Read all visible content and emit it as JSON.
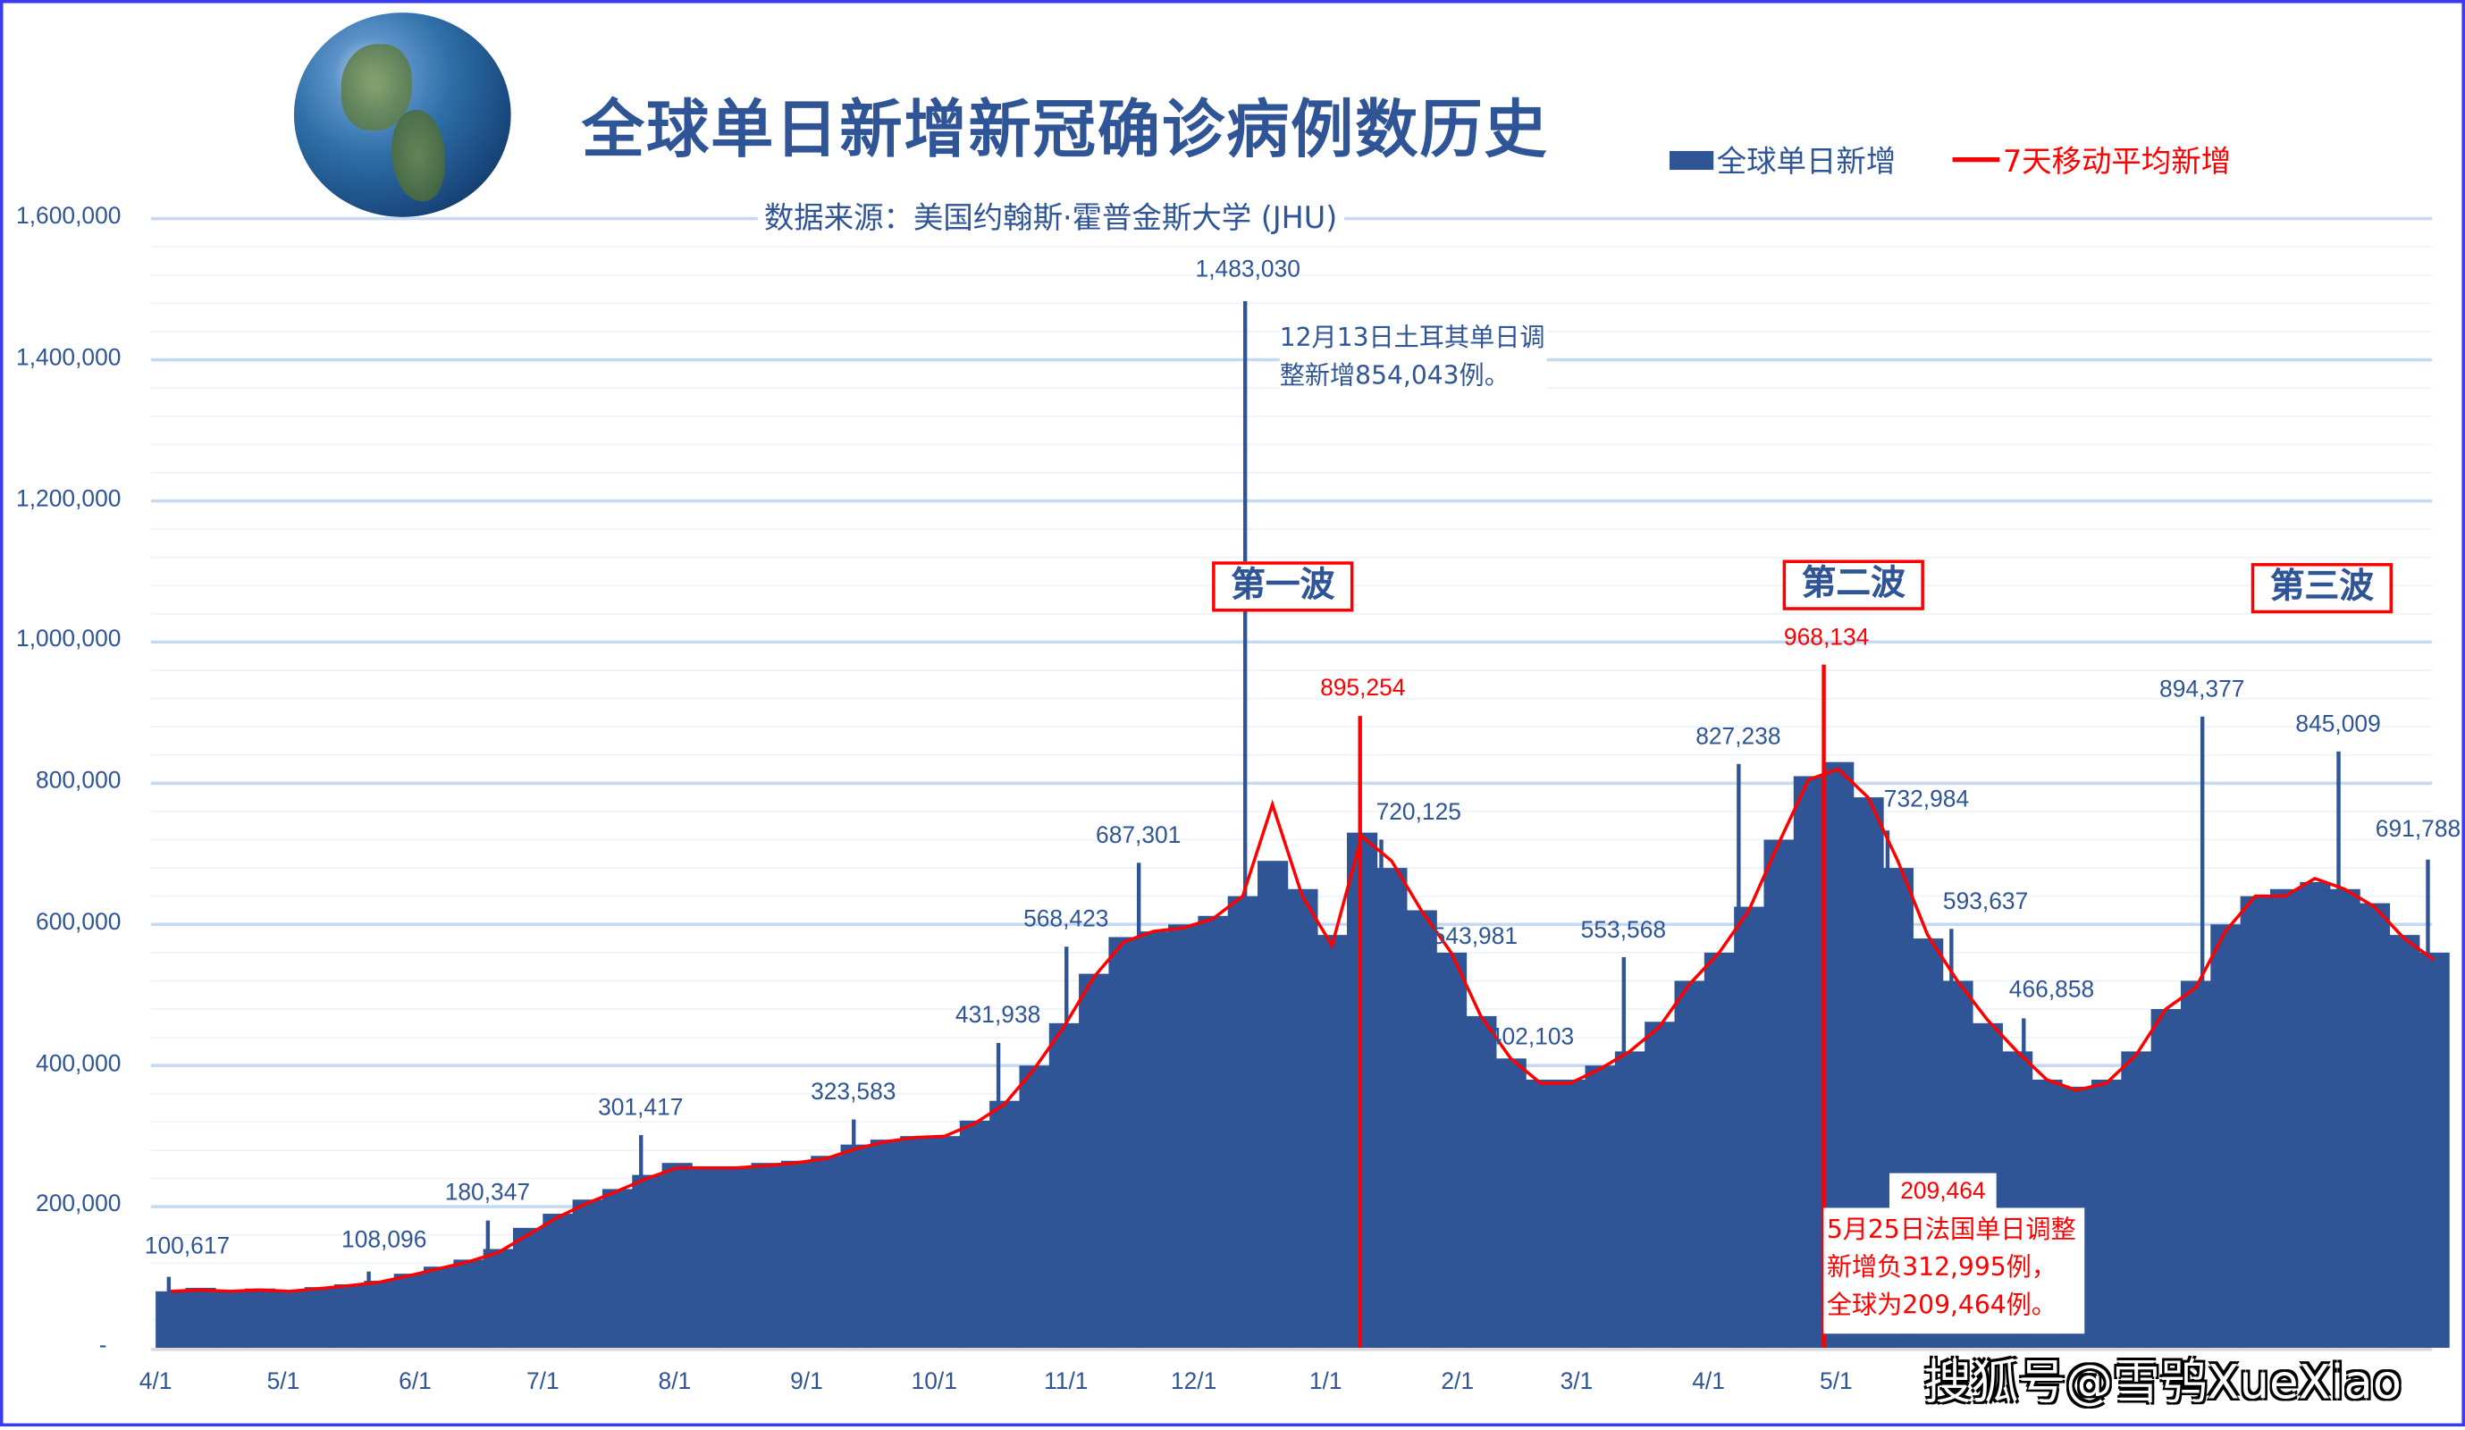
{
  "title": "全球单日新增新冠确诊病例数历史",
  "subtitle": "数据来源：美国约翰斯·霍普金斯大学 (JHU)",
  "watermark": "搜狐号@雪鸮XueXiao",
  "colors": {
    "bars": "#2f5597",
    "ma_line": "#ff0000",
    "grid": "#c5d9f1",
    "text": "#2f5597",
    "highlight": "#ff0000"
  },
  "icons": {
    "globe": "earth-globe-image"
  },
  "chart_data": {
    "type": "bar",
    "title": "全球单日新增新冠确诊病例数历史",
    "xlabel": "",
    "ylabel": "",
    "ylim": [
      0,
      1600000
    ],
    "grid": true,
    "legend_placement": "top-right",
    "yticks": [
      "-",
      "200,000",
      "400,000",
      "600,000",
      "800,000",
      "1,000,000",
      "1,200,000",
      "1,400,000",
      "1,600,000"
    ],
    "xticks": [
      "4/1",
      "5/1",
      "6/1",
      "7/1",
      "8/1",
      "9/1",
      "10/1",
      "11/1",
      "12/1",
      "1/1",
      "2/1",
      "3/1",
      "4/1",
      "5/1"
    ],
    "xtick_dates": [
      "2020-04-01",
      "2020-05-01",
      "2020-06-01",
      "2020-07-01",
      "2020-08-01",
      "2020-09-01",
      "2020-10-01",
      "2020-11-01",
      "2020-12-01",
      "2021-01-01",
      "2021-02-01",
      "2021-03-01",
      "2021-04-01",
      "2021-05-01"
    ],
    "x": [
      "2020-04-01",
      "2020-04-08",
      "2020-04-15",
      "2020-04-22",
      "2020-04-29",
      "2020-05-06",
      "2020-05-13",
      "2020-05-20",
      "2020-05-27",
      "2020-06-03",
      "2020-06-10",
      "2020-06-17",
      "2020-06-24",
      "2020-07-01",
      "2020-07-08",
      "2020-07-15",
      "2020-07-22",
      "2020-07-29",
      "2020-08-05",
      "2020-08-12",
      "2020-08-19",
      "2020-08-26",
      "2020-09-02",
      "2020-09-09",
      "2020-09-16",
      "2020-09-23",
      "2020-09-30",
      "2020-10-07",
      "2020-10-14",
      "2020-10-21",
      "2020-10-28",
      "2020-11-04",
      "2020-11-11",
      "2020-11-18",
      "2020-11-25",
      "2020-12-02",
      "2020-12-09",
      "2020-12-16",
      "2020-12-23",
      "2020-12-30",
      "2021-01-06",
      "2021-01-13",
      "2021-01-20",
      "2021-01-27",
      "2021-02-03",
      "2021-02-10",
      "2021-02-17",
      "2021-02-24",
      "2021-03-03",
      "2021-03-10",
      "2021-03-17",
      "2021-03-24",
      "2021-03-31",
      "2021-04-07",
      "2021-04-14",
      "2021-04-21",
      "2021-04-28",
      "2021-05-05",
      "2021-05-12",
      "2021-05-19",
      "2021-05-26",
      "2021-06-02",
      "2021-06-09",
      "2021-06-16",
      "2021-06-23",
      "2021-06-30",
      "2021-07-07",
      "2021-07-14",
      "2021-07-21",
      "2021-07-28",
      "2021-08-04",
      "2021-08-11",
      "2021-08-18",
      "2021-08-25",
      "2021-09-01",
      "2021-09-08",
      "2021-09-15"
    ],
    "series": [
      {
        "name": "全球单日新增",
        "type": "bar",
        "values": [
          80000,
          85000,
          82000,
          84000,
          80000,
          86000,
          90000,
          95000,
          105000,
          115000,
          125000,
          140000,
          170000,
          190000,
          210000,
          225000,
          245000,
          262000,
          255000,
          255000,
          262000,
          265000,
          272000,
          288000,
          295000,
          300000,
          300000,
          322000,
          350000,
          400000,
          460000,
          530000,
          582000,
          590000,
          600000,
          612000,
          640000,
          690000,
          650000,
          585000,
          730000,
          680000,
          620000,
          560000,
          470000,
          410000,
          380000,
          380000,
          400000,
          420000,
          462000,
          520000,
          560000,
          625000,
          720000,
          810000,
          830000,
          780000,
          680000,
          580000,
          520000,
          460000,
          420000,
          380000,
          370000,
          380000,
          420000,
          480000,
          520000,
          600000,
          640000,
          650000,
          660000,
          650000,
          630000,
          585000,
          560000
        ]
      },
      {
        "name": "7天移动平均新增",
        "type": "line",
        "values": [
          80000,
          82000,
          80000,
          82000,
          80000,
          84000,
          88000,
          93000,
          102000,
          112000,
          122000,
          135000,
          160000,
          185000,
          205000,
          222000,
          240000,
          255000,
          255000,
          255000,
          258000,
          262000,
          268000,
          282000,
          292000,
          298000,
          300000,
          318000,
          345000,
          395000,
          455000,
          525000,
          575000,
          590000,
          595000,
          608000,
          640000,
          770000,
          640000,
          570000,
          725000,
          690000,
          620000,
          560000,
          470000,
          410000,
          375000,
          375000,
          395000,
          420000,
          455000,
          515000,
          560000,
          620000,
          715000,
          805000,
          820000,
          780000,
          690000,
          585000,
          520000,
          465000,
          420000,
          380000,
          365000,
          375000,
          415000,
          480000,
          510000,
          590000,
          640000,
          640000,
          665000,
          650000,
          625000,
          580000,
          550000
        ]
      }
    ],
    "annotations": [
      {
        "date": "2020-04-04",
        "value": 100617,
        "label": "100,617"
      },
      {
        "date": "2020-05-21",
        "value": 108096,
        "label": "108,096"
      },
      {
        "date": "2020-06-18",
        "value": 180347,
        "label": "180,347"
      },
      {
        "date": "2020-07-24",
        "value": 301417,
        "label": "301,417"
      },
      {
        "date": "2020-09-12",
        "value": 323583,
        "label": "323,583"
      },
      {
        "date": "2020-10-16",
        "value": 431938,
        "label": "431,938"
      },
      {
        "date": "2020-11-01",
        "value": 568423,
        "label": "568,423"
      },
      {
        "date": "2020-11-18",
        "value": 687301,
        "label": "687,301"
      },
      {
        "date": "2020-12-13",
        "value": 1483030,
        "label": "1,483,030"
      },
      {
        "date": "2021-01-09",
        "value": 895254,
        "label": "895,254",
        "highlight": true
      },
      {
        "date": "2021-01-14",
        "value": 720125,
        "label": "720,125"
      },
      {
        "date": "2021-01-28",
        "value": 543981,
        "label": "543,981"
      },
      {
        "date": "2021-02-11",
        "value": 402103,
        "label": "402,103"
      },
      {
        "date": "2021-03-12",
        "value": 553568,
        "label": "553,568"
      },
      {
        "date": "2021-04-08",
        "value": 827238,
        "label": "827,238"
      },
      {
        "date": "2021-04-28",
        "value": 968134,
        "label": "968,134",
        "highlight": true
      },
      {
        "date": "2021-05-13",
        "value": 732984,
        "label": "732,984"
      },
      {
        "date": "2021-05-25",
        "value": 209464,
        "label": "209,464",
        "highlight": true
      },
      {
        "date": "2021-05-28",
        "value": 593637,
        "label": "593,637"
      },
      {
        "date": "2021-06-14",
        "value": 466858,
        "label": "466,858"
      },
      {
        "date": "2021-07-26",
        "value": 894377,
        "label": "894,377"
      },
      {
        "date": "2021-08-27",
        "value": 845009,
        "label": "845,009"
      },
      {
        "date": "2021-09-17",
        "value": 691788,
        "label": "691,788"
      }
    ],
    "notes": {
      "turkey": "12月13日土耳其单日调整新增854,043例。",
      "france": "5月25日法国单日调整新增负312,995例，全球为209,464例。"
    },
    "waves": [
      "第一波",
      "第二波",
      "第三波"
    ]
  }
}
